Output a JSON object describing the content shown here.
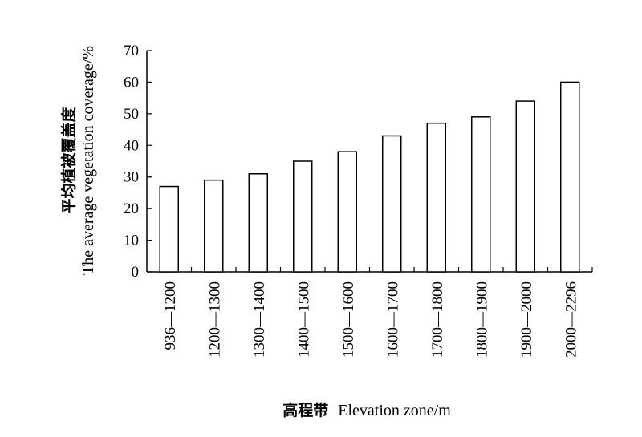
{
  "chart_data": {
    "type": "bar",
    "categories": [
      "936—1200",
      "1200—1300",
      "1300—1400",
      "1400—1500",
      "1500—1600",
      "1600—1700",
      "1700—1800",
      "1800—1900",
      "1900—2000",
      "2000—2296"
    ],
    "values": [
      27,
      29,
      31,
      35,
      38,
      43,
      47,
      49,
      54,
      60
    ],
    "title": "",
    "xlabel_zh": "高程带",
    "xlabel_en": "Elevation zone/m",
    "ylabel_zh": "平均植被覆盖度",
    "ylabel_en": "The average vegetation coverage/%",
    "ylim": [
      0,
      70
    ],
    "yticks": [
      0,
      10,
      20,
      30,
      40,
      50,
      60,
      70
    ],
    "grid": false,
    "bar_fill": "#ffffff",
    "bar_stroke": "#000000"
  }
}
